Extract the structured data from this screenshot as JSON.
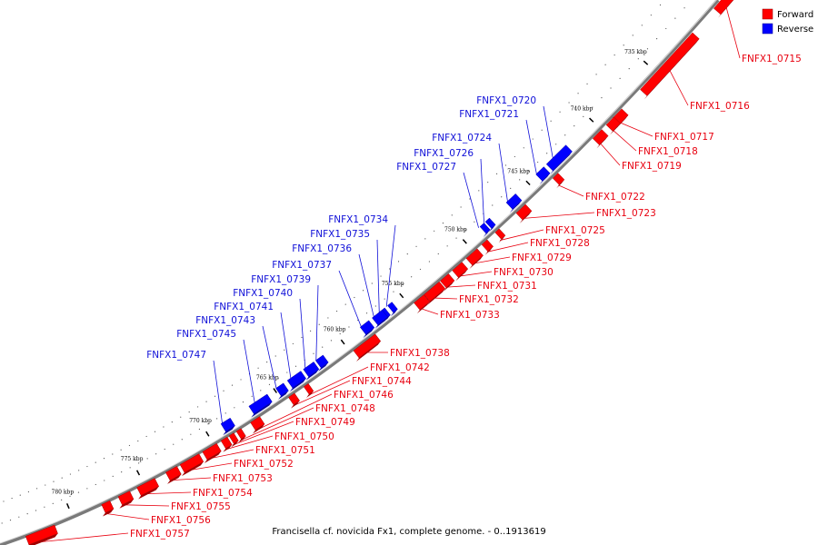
{
  "caption": "Francisella cf. novicida Fx1, complete genome. - 0..1913619",
  "legend": [
    {
      "label": "Forward",
      "color": "#ff0000"
    },
    {
      "label": "Reverse",
      "color": "#0000ff"
    }
  ],
  "colors": {
    "forward": "#ff0000",
    "reverse": "#0000ff",
    "backbone": "#808080"
  },
  "ticks": [
    "735 kbp",
    "740 kbp",
    "745 kbp",
    "750 kbp",
    "755 kbp",
    "760 kbp",
    "765 kbp",
    "770 kbp",
    "775 kbp",
    "780 kbp"
  ],
  "genes_forward": [
    "FNFX1_0715",
    "FNFX1_0716",
    "FNFX1_0717",
    "FNFX1_0718",
    "FNFX1_0719",
    "FNFX1_0722",
    "FNFX1_0723",
    "FNFX1_0725",
    "FNFX1_0728",
    "FNFX1_0729",
    "FNFX1_0730",
    "FNFX1_0731",
    "FNFX1_0732",
    "FNFX1_0733",
    "FNFX1_0738",
    "FNFX1_0742",
    "FNFX1_0744",
    "FNFX1_0746",
    "FNFX1_0748",
    "FNFX1_0749",
    "FNFX1_0750",
    "FNFX1_0751",
    "FNFX1_0752",
    "FNFX1_0753",
    "FNFX1_0754",
    "FNFX1_0755",
    "FNFX1_0756",
    "FNFX1_0757"
  ],
  "genes_reverse": [
    "FNFX1_0720",
    "FNFX1_0721",
    "FNFX1_0724",
    "FNFX1_0726",
    "FNFX1_0727",
    "FNFX1_0734",
    "FNFX1_0735",
    "FNFX1_0736",
    "FNFX1_0737",
    "FNFX1_0739",
    "FNFX1_0740",
    "FNFX1_0741",
    "FNFX1_0743",
    "FNFX1_0745",
    "FNFX1_0747"
  ]
}
